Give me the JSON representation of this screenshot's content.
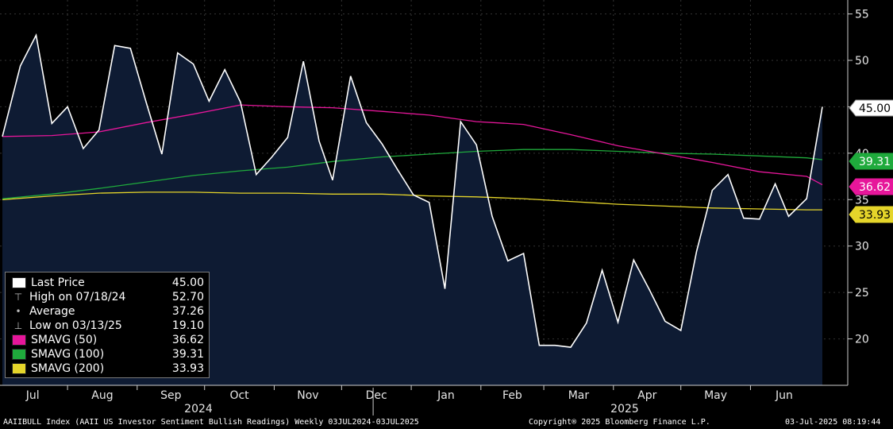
{
  "chart_data": {
    "type": "line",
    "y_ticks": [
      20,
      25,
      30,
      35,
      40,
      45,
      50,
      55
    ],
    "ylim": [
      15,
      56.5
    ],
    "x_months": [
      "Jul",
      "Aug",
      "Sep",
      "Oct",
      "Nov",
      "Dec",
      "Jan",
      "Feb",
      "Mar",
      "Apr",
      "May",
      "Jun"
    ],
    "x_years": [
      "2024",
      "2025"
    ],
    "grid": true,
    "legend_placement": "bottom-left",
    "series": [
      {
        "name": "Last Price",
        "kind": "area",
        "color": "#ffffff",
        "fill": "#0e1b33",
        "x": [
          "2024-07-03",
          "2024-07-11",
          "2024-07-18",
          "2024-07-25",
          "2024-08-01",
          "2024-08-08",
          "2024-08-15",
          "2024-08-22",
          "2024-08-29",
          "2024-09-05",
          "2024-09-12",
          "2024-09-19",
          "2024-09-26",
          "2024-10-03",
          "2024-10-10",
          "2024-10-17",
          "2024-10-24",
          "2024-10-31",
          "2024-11-07",
          "2024-11-14",
          "2024-11-21",
          "2024-11-27",
          "2024-12-05",
          "2024-12-12",
          "2024-12-19",
          "2024-12-26",
          "2025-01-02",
          "2025-01-09",
          "2025-01-16",
          "2025-01-23",
          "2025-01-30",
          "2025-02-06",
          "2025-02-13",
          "2025-02-20",
          "2025-02-27",
          "2025-03-06",
          "2025-03-13",
          "2025-03-20",
          "2025-03-27",
          "2025-04-03",
          "2025-04-10",
          "2025-04-17",
          "2025-04-24",
          "2025-05-01",
          "2025-05-08",
          "2025-05-15",
          "2025-05-22",
          "2025-05-29",
          "2025-06-05",
          "2025-06-12",
          "2025-06-18",
          "2025-06-26",
          "2025-07-03"
        ],
        "values": [
          41.8,
          49.4,
          52.7,
          43.2,
          45.0,
          40.5,
          42.5,
          51.6,
          51.3,
          45.5,
          39.9,
          50.8,
          49.6,
          45.6,
          49.0,
          45.5,
          37.7,
          39.6,
          41.7,
          49.9,
          41.3,
          37.1,
          48.3,
          43.3,
          41.0,
          38.2,
          35.5,
          34.7,
          25.4,
          43.4,
          40.9,
          33.2,
          28.4,
          29.2,
          19.3,
          19.3,
          19.1,
          21.7,
          27.4,
          21.8,
          28.5,
          25.3,
          21.9,
          20.9,
          29.4,
          36.0,
          37.7,
          33.0,
          32.9,
          36.7,
          33.2,
          35.1,
          45.0
        ]
      },
      {
        "name": "SMAVG (50)",
        "kind": "line",
        "color": "#e6169a",
        "x": [
          "2024-07-03",
          "2024-07-25",
          "2024-08-15",
          "2024-09-05",
          "2024-09-26",
          "2024-10-17",
          "2024-11-07",
          "2024-11-27",
          "2024-12-19",
          "2025-01-09",
          "2025-01-30",
          "2025-02-20",
          "2025-03-13",
          "2025-04-03",
          "2025-04-24",
          "2025-05-15",
          "2025-06-05",
          "2025-06-26",
          "2025-07-03"
        ],
        "values": [
          41.8,
          41.9,
          42.3,
          43.3,
          44.2,
          45.2,
          45.0,
          44.9,
          44.5,
          44.1,
          43.4,
          43.1,
          42.0,
          40.8,
          39.9,
          39.0,
          38.0,
          37.5,
          36.6
        ]
      },
      {
        "name": "SMAVG (100)",
        "kind": "line",
        "color": "#1faa3c",
        "x": [
          "2024-07-03",
          "2024-07-25",
          "2024-08-15",
          "2024-09-05",
          "2024-09-26",
          "2024-10-17",
          "2024-11-07",
          "2024-11-27",
          "2024-12-19",
          "2025-01-09",
          "2025-01-30",
          "2025-02-20",
          "2025-03-13",
          "2025-04-03",
          "2025-04-24",
          "2025-05-15",
          "2025-06-05",
          "2025-06-26",
          "2025-07-03"
        ],
        "values": [
          35.1,
          35.6,
          36.2,
          36.9,
          37.6,
          38.1,
          38.5,
          39.1,
          39.6,
          39.9,
          40.2,
          40.4,
          40.4,
          40.2,
          40.0,
          39.9,
          39.7,
          39.5,
          39.3
        ]
      },
      {
        "name": "SMAVG (200)",
        "kind": "line",
        "color": "#e5d52a",
        "x": [
          "2024-07-03",
          "2024-07-25",
          "2024-08-15",
          "2024-09-05",
          "2024-09-26",
          "2024-10-17",
          "2024-11-07",
          "2024-11-27",
          "2024-12-19",
          "2025-01-09",
          "2025-01-30",
          "2025-02-20",
          "2025-03-13",
          "2025-04-03",
          "2025-04-24",
          "2025-05-15",
          "2025-06-05",
          "2025-06-26",
          "2025-07-03"
        ],
        "values": [
          35.0,
          35.4,
          35.7,
          35.8,
          35.8,
          35.7,
          35.7,
          35.6,
          35.6,
          35.4,
          35.3,
          35.1,
          34.8,
          34.5,
          34.3,
          34.1,
          34.0,
          33.9,
          33.9
        ]
      }
    ],
    "flags": [
      {
        "label": "45.00",
        "value": 45.0,
        "bg": "#ffffff",
        "fg": "#000000"
      },
      {
        "label": "39.31",
        "value": 39.31,
        "bg": "#1faa3c",
        "fg": "#ffffff"
      },
      {
        "label": "36.62",
        "value": 36.62,
        "bg": "#e6169a",
        "fg": "#ffffff"
      },
      {
        "label": "33.93",
        "value": 33.93,
        "bg": "#e5d52a",
        "fg": "#000000"
      }
    ]
  },
  "legend": {
    "rows": [
      {
        "label": "Last Price",
        "value": "45.00",
        "color": "#ffffff",
        "marker": "box"
      },
      {
        "label": "High on 07/18/24",
        "value": "52.70",
        "color": "#bbbbbb",
        "marker": "high"
      },
      {
        "label": "Average",
        "value": "37.26",
        "color": "#bbbbbb",
        "marker": "avg"
      },
      {
        "label": "Low on 03/13/25",
        "value": "19.10",
        "color": "#bbbbbb",
        "marker": "low"
      },
      {
        "label": "SMAVG (50)",
        "value": "36.62",
        "color": "#e6169a",
        "marker": "box"
      },
      {
        "label": "SMAVG (100)",
        "value": "39.31",
        "color": "#1faa3c",
        "marker": "box"
      },
      {
        "label": "SMAVG (200)",
        "value": "33.93",
        "color": "#e5d52a",
        "marker": "box"
      }
    ]
  },
  "footer": {
    "left": "AAIIBULL Index (AAII US Investor Sentiment Bullish Readings) Weekly 03JUL2024-03JUL2025",
    "center": "Copyright® 2025 Bloomberg Finance L.P.",
    "right": "03-Jul-2025 08:19:44"
  }
}
